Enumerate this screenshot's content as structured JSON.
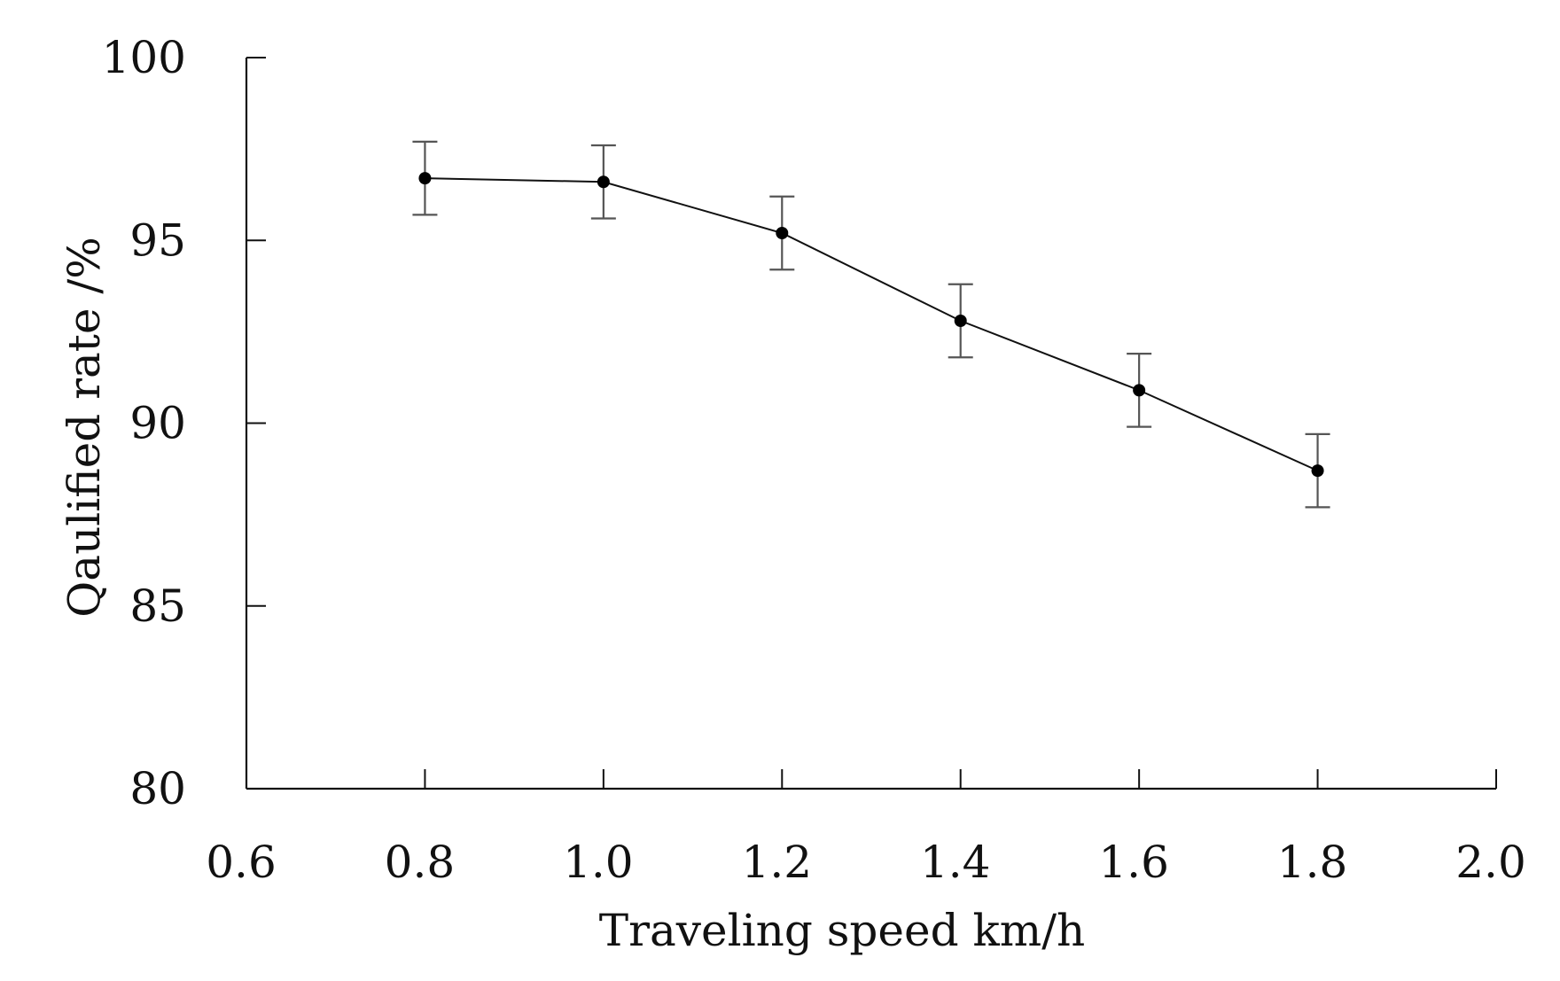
{
  "chart_data": {
    "type": "line",
    "title": "",
    "xlabel": "Traveling speed km/h",
    "ylabel": "Qaulified rate /%",
    "xlim": [
      0.6,
      2.0
    ],
    "ylim": [
      80,
      100
    ],
    "x_ticks": [
      "0.6",
      "0.8",
      "1.0",
      "1.2",
      "1.4",
      "1.6",
      "1.8",
      "2.0"
    ],
    "y_ticks": [
      "80",
      "85",
      "90",
      "95",
      "100"
    ],
    "grid": false,
    "legend": "none",
    "series": [
      {
        "x": [
          0.8,
          1.0,
          1.2,
          1.4,
          1.6,
          1.8
        ],
        "y": [
          96.7,
          96.6,
          95.2,
          92.8,
          90.9,
          88.7
        ],
        "error": [
          1.0,
          1.0,
          1.0,
          1.0,
          1.0,
          1.0
        ],
        "color": "#111111"
      }
    ]
  }
}
